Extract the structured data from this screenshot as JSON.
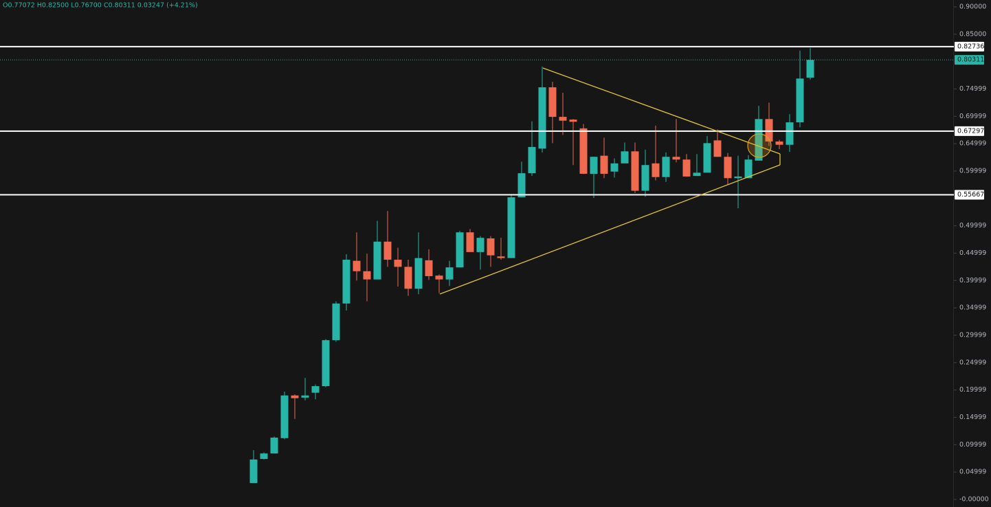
{
  "chart_data": {
    "type": "candlestick",
    "header": "O0.77072 H0.82500 L0.76700 C0.80311 0.03247 (+4.21%)",
    "up_color": "#26b5a6",
    "down_color": "#ef6a4f",
    "ylim": [
      -0.0138,
      0.9125
    ],
    "yticks": [
      {
        "value": 0.9,
        "label": "0.90000"
      },
      {
        "value": 0.85,
        "label": "0.85000"
      },
      {
        "value": 0.75,
        "label": "0.74999"
      },
      {
        "value": 0.7,
        "label": "0.69999"
      },
      {
        "value": 0.65,
        "label": "0.64999"
      },
      {
        "value": 0.6,
        "label": "0.59999"
      },
      {
        "value": 0.5,
        "label": "0.49999"
      },
      {
        "value": 0.45,
        "label": "0.44999"
      },
      {
        "value": 0.4,
        "label": "0.39999"
      },
      {
        "value": 0.35,
        "label": "0.34999"
      },
      {
        "value": 0.3,
        "label": "0.29999"
      },
      {
        "value": 0.25,
        "label": "0.24999"
      },
      {
        "value": 0.2,
        "label": "0.19999"
      },
      {
        "value": 0.15,
        "label": "0.14999"
      },
      {
        "value": 0.1,
        "label": "0.09999"
      },
      {
        "value": 0.05,
        "label": "0.04999"
      },
      {
        "value": 0,
        "label": "-0.00000"
      }
    ],
    "levels": [
      0.82736,
      0.67297,
      0.55667
    ],
    "last_price": 0.80311,
    "open": [
      0.03,
      0.074,
      0.084,
      0.112,
      0.19,
      0.186,
      0.195,
      0.207,
      0.291,
      0.358,
      0.436,
      0.417,
      0.402,
      0.471,
      0.438,
      0.425,
      0.385,
      0.437,
      0.409,
      0.402,
      0.424,
      0.488,
      0.452,
      0.477,
      0.444,
      0.441,
      0.552,
      0.596,
      0.641,
      0.753,
      0.699,
      0.694,
      0.678,
      0.595,
      0.628,
      0.599,
      0.614,
      0.636,
      0.564,
      0.614,
      0.589,
      0.626,
      0.621,
      0.591,
      0.597,
      0.656,
      0.626,
      0.587,
      0.587,
      0.619,
      0.695,
      0.654,
      0.648,
      0.689,
      0.77072
    ],
    "high": [
      0.09,
      0.086,
      0.115,
      0.197,
      0.192,
      0.222,
      0.21,
      0.293,
      0.362,
      0.448,
      0.488,
      0.449,
      0.509,
      0.527,
      0.46,
      0.438,
      0.488,
      0.457,
      0.411,
      0.436,
      0.491,
      0.494,
      0.481,
      0.481,
      0.478,
      0.558,
      0.617,
      0.691,
      0.791,
      0.763,
      0.743,
      0.695,
      0.686,
      0.626,
      0.661,
      0.623,
      0.652,
      0.652,
      0.639,
      0.683,
      0.634,
      0.695,
      0.631,
      0.631,
      0.664,
      0.676,
      0.633,
      0.628,
      0.629,
      0.719,
      0.725,
      0.657,
      0.704,
      0.82,
      0.825
    ],
    "low": [
      0.03,
      0.073,
      0.084,
      0.11,
      0.147,
      0.181,
      0.183,
      0.205,
      0.288,
      0.345,
      0.4,
      0.362,
      0.402,
      0.425,
      0.389,
      0.372,
      0.375,
      0.401,
      0.377,
      0.39,
      0.424,
      0.452,
      0.42,
      0.425,
      0.438,
      0.441,
      0.552,
      0.591,
      0.634,
      0.651,
      0.666,
      0.611,
      0.595,
      0.551,
      0.587,
      0.588,
      0.614,
      0.56,
      0.553,
      0.583,
      0.58,
      0.616,
      0.59,
      0.591,
      0.597,
      0.626,
      0.575,
      0.532,
      0.587,
      0.619,
      0.646,
      0.64,
      0.635,
      0.68,
      0.767
    ],
    "close": [
      0.073,
      0.084,
      0.113,
      0.19,
      0.185,
      0.19,
      0.207,
      0.291,
      0.358,
      0.438,
      0.417,
      0.402,
      0.471,
      0.438,
      0.425,
      0.385,
      0.441,
      0.408,
      0.402,
      0.424,
      0.488,
      0.452,
      0.478,
      0.446,
      0.441,
      0.552,
      0.596,
      0.644,
      0.753,
      0.699,
      0.692,
      0.69,
      0.595,
      0.626,
      0.595,
      0.614,
      0.636,
      0.564,
      0.611,
      0.589,
      0.626,
      0.621,
      0.59,
      0.597,
      0.651,
      0.626,
      0.587,
      0.59,
      0.621,
      0.695,
      0.654,
      0.648,
      0.689,
      0.769,
      0.80311
    ]
  }
}
